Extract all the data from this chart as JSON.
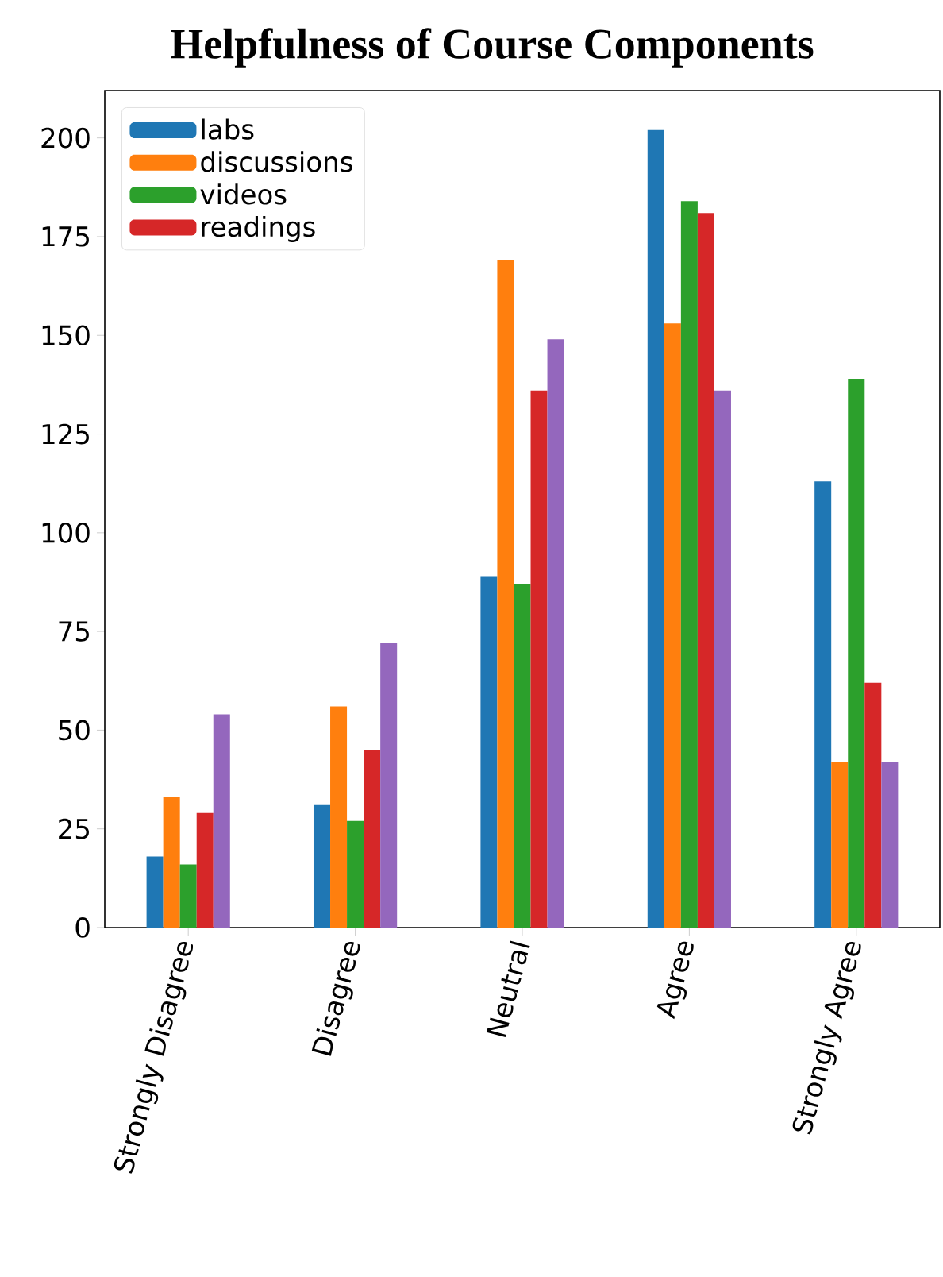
{
  "chart_data": {
    "type": "bar",
    "title": "Helpfulness of Course Components",
    "categories": [
      "Strongly Disagree",
      "Disagree",
      "Neutral",
      "Agree",
      "Strongly Agree"
    ],
    "series": [
      {
        "name": "labs",
        "color": "#1f77b4",
        "values": [
          18,
          31,
          89,
          202,
          113
        ]
      },
      {
        "name": "discussions",
        "color": "#ff7f0e",
        "values": [
          33,
          56,
          169,
          153,
          42
        ]
      },
      {
        "name": "videos",
        "color": "#2ca02c",
        "values": [
          16,
          27,
          87,
          184,
          139
        ]
      },
      {
        "name": "readings",
        "color": "#d62728",
        "values": [
          29,
          45,
          136,
          181,
          62
        ]
      },
      {
        "color": "#9467bd",
        "values": [
          54,
          72,
          149,
          136,
          42
        ]
      }
    ],
    "ylim": [
      0,
      212
    ],
    "yticks": [
      0,
      25,
      50,
      75,
      100,
      125,
      150,
      175,
      200
    ],
    "legend": "top left"
  }
}
